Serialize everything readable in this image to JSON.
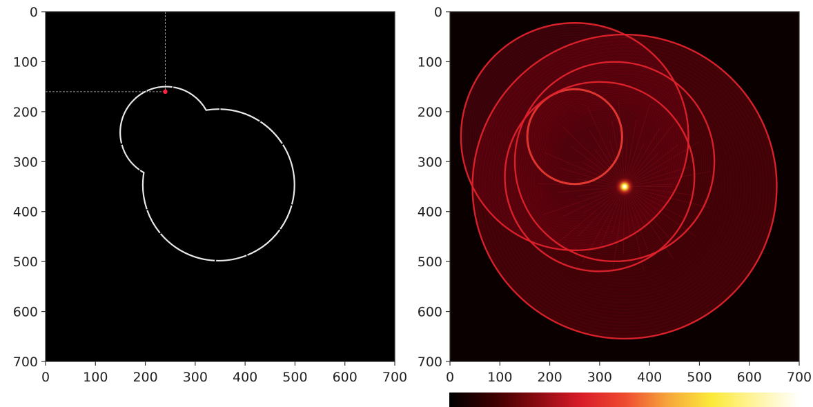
{
  "chart_data": [
    {
      "type": "image",
      "xlim": [
        0,
        700
      ],
      "ylim": [
        700,
        0
      ],
      "x_ticks": [
        0,
        100,
        200,
        300,
        400,
        500,
        600,
        700
      ],
      "y_ticks": [
        0,
        100,
        200,
        300,
        400,
        500,
        600,
        700
      ],
      "background": "#000000",
      "curve_color": "#e8e8e8",
      "marker": {
        "x": 240,
        "y": 160,
        "color": "#ff2244"
      },
      "small_circle": {
        "cx": 250,
        "cy": 250,
        "r": 92
      },
      "large_circle": {
        "cx": 350,
        "cy": 350,
        "r": 152
      },
      "neck_points": [
        {
          "x": 322,
          "y": 197
        },
        {
          "x": 197,
          "y": 322
        }
      ]
    },
    {
      "type": "image",
      "xlim": [
        0,
        700
      ],
      "ylim": [
        700,
        0
      ],
      "x_ticks": [
        0,
        100,
        200,
        300,
        400,
        500,
        600,
        700
      ],
      "y_ticks": [
        0,
        100,
        200,
        300,
        400,
        500,
        600,
        700
      ],
      "background": "#0b0000",
      "colormap": "hot",
      "colorbar_stops": [
        "#000000",
        "#3a0000",
        "#8a0a10",
        "#d81b2a",
        "#ee4a30",
        "#f6a63a",
        "#fbea3a",
        "#fff4a0",
        "#ffffff"
      ],
      "peak": {
        "x": 350,
        "y": 350
      },
      "circles": [
        {
          "cx": 250,
          "cy": 250,
          "r": 228
        },
        {
          "cx": 350,
          "cy": 350,
          "r": 305
        },
        {
          "cx": 250,
          "cy": 250,
          "r": 95
        },
        {
          "cx": 330,
          "cy": 300,
          "r": 200
        },
        {
          "cx": 300,
          "cy": 330,
          "r": 190
        }
      ]
    }
  ]
}
